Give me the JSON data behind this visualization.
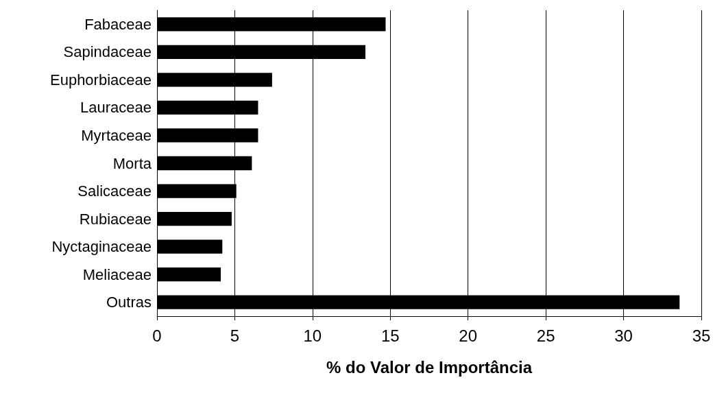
{
  "chart_data": {
    "type": "bar",
    "orientation": "horizontal",
    "xlabel": "% do Valor de Importância",
    "categories": [
      "Fabaceae",
      "Sapindaceae",
      "Euphorbiaceae",
      "Lauraceae",
      "Myrtaceae",
      "Morta",
      "Salicaceae",
      "Rubiaceae",
      "Nyctaginaceae",
      "Meliaceae",
      "Outras"
    ],
    "values": [
      14.7,
      13.4,
      7.4,
      6.5,
      6.5,
      6.1,
      5.1,
      4.8,
      4.2,
      4.1,
      33.6
    ],
    "color": "#000000",
    "xlim": [
      0,
      35
    ],
    "xticks": [
      0,
      5,
      10,
      15,
      20,
      25,
      30,
      35
    ],
    "grid": "x"
  }
}
